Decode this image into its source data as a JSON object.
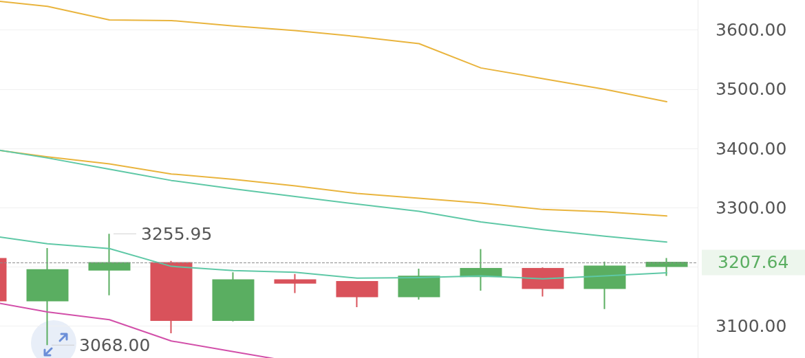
{
  "chart_data": {
    "type": "candlestick",
    "categories": [
      null,
      null,
      null,
      null,
      null,
      null,
      null,
      null,
      null,
      null,
      null,
      null
    ],
    "ohlc": [
      [
        3214,
        3214,
        3143,
        3143
      ],
      [
        3143,
        3232,
        3068,
        3195
      ],
      [
        3195,
        3255.95,
        3152,
        3207
      ],
      [
        3207,
        3210,
        3088,
        3110
      ],
      [
        3110,
        3191,
        3108,
        3178
      ],
      [
        3178,
        3188,
        3156,
        3173
      ],
      [
        3175,
        3175,
        3132,
        3150
      ],
      [
        3150,
        3197,
        3145,
        3184
      ],
      [
        3184,
        3230,
        3160,
        3197
      ],
      [
        3197,
        3199,
        3150,
        3164
      ],
      [
        3164,
        3209,
        3129,
        3201
      ],
      [
        3201,
        3215,
        3185,
        3207.64
      ]
    ],
    "colors": [
      "#d9525b",
      "#5aae61",
      "#5aae61",
      "#d9525b",
      "#5aae61",
      "#d9525b",
      "#d9525b",
      "#5aae61",
      "#5aae61",
      "#d9525b",
      "#5aae61",
      "#5aae61"
    ],
    "series": [
      {
        "type": "line",
        "color": "#e9b43d",
        "values": [
          3651,
          3640,
          3617,
          3616,
          3607,
          3599,
          3589,
          3577,
          3536,
          3518,
          3500,
          3479
        ]
      },
      {
        "type": "line",
        "color": "#e9b43d",
        "values": [
          3400,
          3386,
          3374,
          3357,
          3348,
          3337,
          3324,
          3316,
          3308,
          3297,
          3293,
          3286
        ]
      },
      {
        "type": "line",
        "color": "#5ec8a6",
        "values": [
          3401,
          3384,
          3365,
          3346,
          3332,
          3319,
          3306,
          3294,
          3276,
          3263,
          3252,
          3242
        ]
      },
      {
        "type": "line",
        "color": "#5ec8a6",
        "values": [
          3254,
          3239,
          3231,
          3201,
          3194,
          3191,
          3181,
          3182,
          3185,
          3180,
          3185,
          3190
        ]
      },
      {
        "type": "line",
        "color": "#d24fa9",
        "values": [
          3143,
          3124,
          3111,
          3075,
          3057,
          3039,
          null,
          null,
          null,
          null,
          null,
          null
        ]
      }
    ],
    "ylim": [
      3030,
      3660
    ],
    "yticks": [
      {
        "value": 3100,
        "label": "3100.00"
      },
      {
        "value": 3200,
        "label": null
      },
      {
        "value": 3300,
        "label": "3300.00"
      },
      {
        "value": 3400,
        "label": "3400.00"
      },
      {
        "value": 3500,
        "label": "3500.00"
      },
      {
        "value": 3600,
        "label": "3600.00"
      }
    ],
    "grid": "y",
    "marker": "none",
    "tick_labels": "y",
    "ref_lines": [
      {
        "axis": "y",
        "value": 3207.64,
        "label": "3207.64",
        "color": "#8c8c8c",
        "line_style": "dashed"
      }
    ],
    "annotations": [
      "3255.95",
      "3068.00"
    ]
  }
}
